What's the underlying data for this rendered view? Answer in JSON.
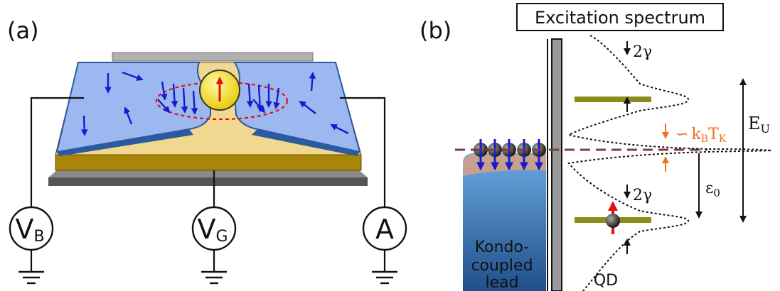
{
  "panel_a": {
    "label": "(a)",
    "meters": {
      "bias": {
        "main": "V",
        "sub": "B"
      },
      "gate": {
        "main": "V",
        "sub": "G"
      },
      "current": {
        "main": "A"
      }
    }
  },
  "panel_b": {
    "label": "(b)",
    "title": "Excitation spectrum",
    "lead_label_lines": [
      "Kondo-",
      "coupled",
      "lead"
    ],
    "qd_label": "QD",
    "gamma_top": "2γ",
    "gamma_bottom": "2γ",
    "kondo_width": {
      "prefix": "∽",
      "k": "k",
      "k_sub": "B",
      "t": "T",
      "t_sub": "K"
    },
    "epsilon": {
      "main": "ε",
      "sub": "0"
    },
    "eu": {
      "main": "E",
      "sub": "U"
    }
  },
  "colors": {
    "lead_blue": "#9bb9f0",
    "electrode_edge": "#2c5aa0",
    "substrate_gold": "#a8860a",
    "substrate_top": "#f0d890",
    "gate_dark": "#555555",
    "spin_arrow": "#1a1acc",
    "dot_spin": "#e01010",
    "dot_yellow": "#f5e000",
    "cloud_dash": "#e01010",
    "level_olive": "#8c8c1a",
    "kondo_orange": "#f07020",
    "fermi_dash": "#7a4040",
    "lead_fill": "#3f86c8"
  }
}
